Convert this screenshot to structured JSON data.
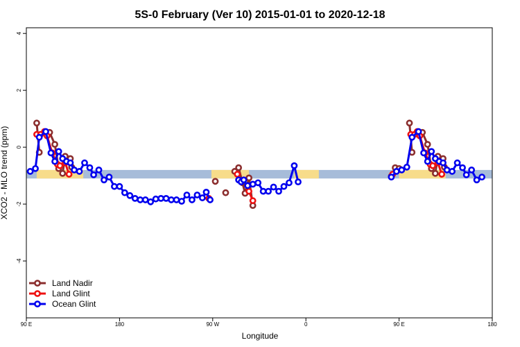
{
  "chart_data": {
    "type": "line",
    "title": "5S-0 February (Ver 10)   2015-01-01 to 2020-12-18",
    "xlabel": "Longitude",
    "ylabel": "XCO2 - MLO trend (ppm)",
    "xlim": [
      90,
      450
    ],
    "ylim": [
      -6,
      4.2
    ],
    "x_ticks": [
      {
        "value": 90,
        "label": "90 E"
      },
      {
        "value": 162,
        "label": "180"
      },
      {
        "value": 234,
        "label": "90 W"
      },
      {
        "value": 306,
        "label": "0"
      },
      {
        "value": 378,
        "label": "90 E"
      },
      {
        "value": 450,
        "label": "180"
      }
    ],
    "y_ticks": [
      {
        "value": -4,
        "label": "-4"
      },
      {
        "value": -2,
        "label": "-2"
      },
      {
        "value": 0,
        "label": "0"
      },
      {
        "value": 2,
        "label": "2"
      },
      {
        "value": 4,
        "label": "4"
      }
    ],
    "legend_position": "bottom-left",
    "band": {
      "y_top": -0.8,
      "y_bottom": -1.1,
      "ocean_color": "#a7bcd9",
      "land_color": "#f7dc8a"
    },
    "land_segments": [
      [
        98,
        134
      ],
      [
        233,
        262
      ],
      [
        297,
        316
      ],
      [
        378,
        414
      ]
    ],
    "series": [
      {
        "name": "Land Nadir",
        "color": "#8b2e2e",
        "points": [
          [
            98,
            0.85
          ],
          [
            100,
            -0.18
          ],
          [
            108,
            0.52
          ],
          [
            112,
            0.1
          ],
          [
            115,
            -0.75
          ],
          [
            118,
            -0.92
          ],
          [
            120,
            -0.32
          ],
          [
            124,
            -0.4
          ],
          [
            125,
            -0.7
          ],
          [
            236,
            -1.2
          ],
          [
            244,
            -1.6
          ],
          [
            251,
            -0.85
          ],
          [
            254,
            -0.72
          ],
          [
            257,
            -1.25
          ],
          [
            259,
            -1.62
          ],
          [
            262,
            -1.08
          ],
          [
            265,
            -2.05
          ],
          [
            372,
            -1.02
          ],
          [
            375,
            -0.72
          ],
          [
            378,
            -0.75
          ],
          [
            386,
            0.85
          ],
          [
            388,
            -0.18
          ],
          [
            396,
            0.52
          ],
          [
            400,
            0.1
          ],
          [
            403,
            -0.75
          ],
          [
            406,
            -0.92
          ],
          [
            408,
            -0.32
          ],
          [
            412,
            -0.4
          ],
          [
            413,
            -0.7
          ]
        ]
      },
      {
        "name": "Land Glint",
        "color": "#ee1111",
        "points": [
          [
            98,
            0.45
          ],
          [
            101,
            0.45
          ],
          [
            104,
            0.55
          ],
          [
            106,
            0.4
          ],
          [
            110,
            -0.2
          ],
          [
            114,
            -0.6
          ],
          [
            116,
            -0.65
          ],
          [
            120,
            -0.55
          ],
          [
            123,
            -0.95
          ],
          [
            231,
            -1.8
          ],
          [
            253,
            -0.95
          ],
          [
            262,
            -1.55
          ],
          [
            265,
            -1.88
          ],
          [
            373,
            -0.95
          ],
          [
            387,
            0.45
          ],
          [
            390,
            0.45
          ],
          [
            392,
            0.55
          ],
          [
            394,
            0.4
          ],
          [
            398,
            -0.2
          ],
          [
            402,
            -0.6
          ],
          [
            404,
            -0.65
          ],
          [
            408,
            -0.55
          ],
          [
            411,
            -0.95
          ]
        ]
      },
      {
        "name": "Ocean Glint",
        "color": "#0000ee",
        "points": [
          [
            93,
            -0.85
          ],
          [
            97,
            -0.75
          ],
          [
            100,
            0.35
          ],
          [
            105,
            0.55
          ],
          [
            109,
            -0.2
          ],
          [
            112,
            -0.5
          ],
          [
            115,
            -0.15
          ],
          [
            118,
            -0.4
          ],
          [
            121,
            -0.5
          ],
          [
            124,
            -0.55
          ],
          [
            127,
            -0.8
          ],
          [
            131,
            -0.85
          ],
          [
            135,
            -0.55
          ],
          [
            139,
            -0.72
          ],
          [
            142,
            -0.97
          ],
          [
            146,
            -0.8
          ],
          [
            150,
            -1.15
          ],
          [
            154,
            -1.05
          ],
          [
            158,
            -1.38
          ],
          [
            162,
            -1.38
          ],
          [
            166,
            -1.6
          ],
          [
            170,
            -1.7
          ],
          [
            174,
            -1.8
          ],
          [
            178,
            -1.85
          ],
          [
            182,
            -1.85
          ],
          [
            186,
            -1.92
          ],
          [
            190,
            -1.82
          ],
          [
            194,
            -1.8
          ],
          [
            198,
            -1.8
          ],
          [
            202,
            -1.85
          ],
          [
            206,
            -1.85
          ],
          [
            210,
            -1.9
          ],
          [
            214,
            -1.68
          ],
          [
            218,
            -1.85
          ],
          [
            222,
            -1.68
          ],
          [
            226,
            -1.78
          ],
          [
            229,
            -1.58
          ],
          [
            232,
            -1.85
          ],
          [
            254,
            -1.15
          ],
          [
            256,
            -1.22
          ],
          [
            258,
            -1.15
          ],
          [
            261,
            -1.35
          ],
          [
            265,
            -1.3
          ],
          [
            269,
            -1.25
          ],
          [
            273,
            -1.55
          ],
          [
            277,
            -1.55
          ],
          [
            281,
            -1.4
          ],
          [
            285,
            -1.55
          ],
          [
            289,
            -1.38
          ],
          [
            293,
            -1.25
          ],
          [
            297,
            -0.65
          ],
          [
            300,
            -1.22
          ],
          [
            372,
            -1.05
          ],
          [
            376,
            -0.85
          ],
          [
            380,
            -0.8
          ],
          [
            384,
            -0.7
          ],
          [
            388,
            0.35
          ],
          [
            393,
            0.55
          ],
          [
            397,
            -0.2
          ],
          [
            400,
            -0.5
          ],
          [
            403,
            -0.15
          ],
          [
            406,
            -0.4
          ],
          [
            409,
            -0.5
          ],
          [
            412,
            -0.55
          ],
          [
            415,
            -0.8
          ],
          [
            419,
            -0.85
          ],
          [
            423,
            -0.55
          ],
          [
            427,
            -0.72
          ],
          [
            430,
            -0.97
          ],
          [
            434,
            -0.8
          ],
          [
            438,
            -1.15
          ],
          [
            442,
            -1.05
          ]
        ]
      }
    ]
  }
}
